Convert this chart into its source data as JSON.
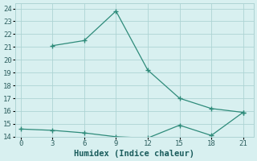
{
  "xlabel": "Humidex (Indice chaleur)",
  "line1_x": [
    3,
    6,
    9,
    12,
    15,
    18,
    21
  ],
  "line1_y": [
    21.1,
    21.5,
    23.8,
    19.2,
    17.0,
    16.2,
    15.9
  ],
  "line2_x": [
    0,
    3,
    6,
    9,
    12,
    15,
    18,
    21
  ],
  "line2_y": [
    14.6,
    14.5,
    14.3,
    14.0,
    13.9,
    14.9,
    14.1,
    15.9
  ],
  "line_color": "#2e8b7a",
  "bg_color": "#d8f0f0",
  "grid_color": "#aed4d4",
  "xlim": [
    -0.5,
    22
  ],
  "ylim": [
    14,
    24.4
  ],
  "xticks": [
    0,
    3,
    6,
    9,
    12,
    15,
    18,
    21
  ],
  "yticks": [
    14,
    15,
    16,
    17,
    18,
    19,
    20,
    21,
    22,
    23,
    24
  ],
  "tick_fontsize": 6.5,
  "label_fontsize": 7.5
}
